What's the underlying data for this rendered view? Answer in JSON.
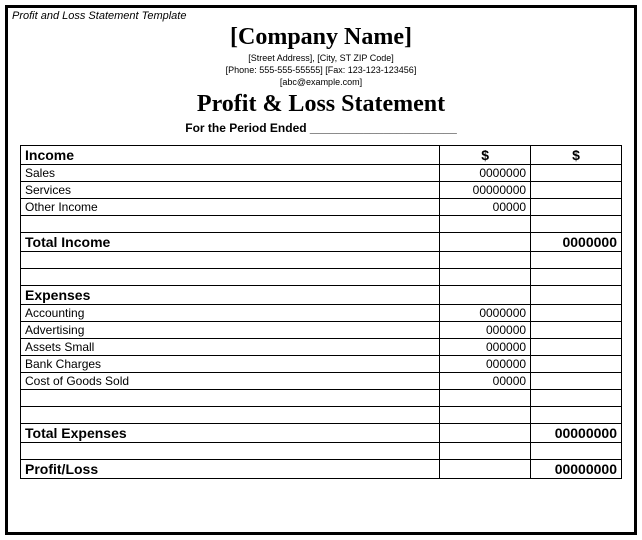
{
  "meta": {
    "template_label": "Profit and Loss Statement Template"
  },
  "header": {
    "company_name": "[Company Name]",
    "address_line": "[Street Address], [City, ST ZIP Code]",
    "contact_line": "[Phone: 555-555-55555] [Fax: 123-123-123456]",
    "email_line": "[abc@example.com]",
    "statement_title": "Profit & Loss Statement",
    "period_text": "For the Period Ended ______________________"
  },
  "columns": {
    "currency_symbol": "$"
  },
  "income": {
    "section_title": "Income",
    "items": [
      {
        "label": "Sales",
        "amount1": "0000000"
      },
      {
        "label": "Services",
        "amount1": "00000000"
      },
      {
        "label": "Other Income",
        "amount1": "00000"
      }
    ],
    "total_label": "Total Income",
    "total_amount2": "0000000"
  },
  "expenses": {
    "section_title": "Expenses",
    "items": [
      {
        "label": "Accounting",
        "amount1": "0000000"
      },
      {
        "label": "Advertising",
        "amount1": "000000"
      },
      {
        "label": "Assets Small",
        "amount1": "000000"
      },
      {
        "label": "Bank Charges",
        "amount1": "000000"
      },
      {
        "label": "Cost of Goods Sold",
        "amount1": "00000"
      }
    ],
    "total_label": "Total Expenses",
    "total_amount2": "00000000"
  },
  "result": {
    "label": "Profit/Loss",
    "amount2": "00000000"
  },
  "style": {
    "border_color": "#000000",
    "background_color": "#ffffff",
    "header_font": "Times New Roman",
    "body_font": "Arial",
    "company_name_fontsize": 24,
    "statement_title_fontsize": 24,
    "section_head_fontsize": 14,
    "row_fontsize": 12,
    "sub_line_fontsize": 9,
    "col_label_width": 420,
    "col_amt_width": 91
  }
}
